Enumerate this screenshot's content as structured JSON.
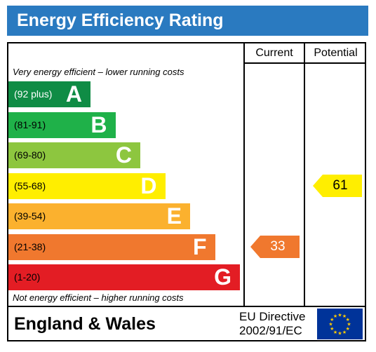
{
  "header": {
    "title": "Energy Efficiency Rating"
  },
  "columns": {
    "current": "Current",
    "potential": "Potential"
  },
  "notes": {
    "top": "Very energy efficient – lower running costs",
    "bottom": "Not energy efficient – higher running costs"
  },
  "footer": {
    "region": "England & Wales",
    "directive_line1": "EU Directive",
    "directive_line2": "2002/91/EC"
  },
  "chart_data": {
    "type": "table",
    "bands": [
      {
        "letter": "A",
        "range": "(92 plus)",
        "color": "#0f8c45"
      },
      {
        "letter": "B",
        "range": "(81-91)",
        "color": "#1fb149"
      },
      {
        "letter": "C",
        "range": "(69-80)",
        "color": "#8dc63f"
      },
      {
        "letter": "D",
        "range": "(55-68)",
        "color": "#ffee00"
      },
      {
        "letter": "E",
        "range": "(39-54)",
        "color": "#fbb12e"
      },
      {
        "letter": "F",
        "range": "(21-38)",
        "color": "#f0782e"
      },
      {
        "letter": "G",
        "range": "(1-20)",
        "color": "#e31d24"
      }
    ],
    "current": {
      "value": "33",
      "band": "F",
      "color": "#f0782e"
    },
    "potential": {
      "value": "61",
      "band": "D",
      "color": "#ffee00"
    }
  },
  "colors": {
    "title_bar": "#2a7ac0",
    "eu_flag_blue": "#003399",
    "eu_flag_stars": "#ffcc00"
  }
}
